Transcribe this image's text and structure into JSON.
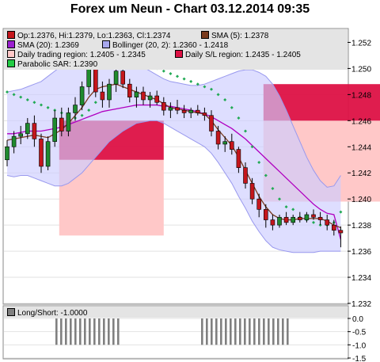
{
  "title": "Forex um Neun - Chart 03.12.2014 09:35",
  "legend": {
    "ohlc": "Op:1.2376, Hi:1.2379, Lo:1.2363, Cl:1.2374",
    "sma5": "SMA (5): 1.2378",
    "sma20": "SMA (20): 1.2369",
    "bollinger": "Bollinger (20, 2): 1.2360 - 1.2418",
    "daily_region": "Daily trading region: 1.2405 - 1.2345",
    "daily_sl": "Daily S/L region: 1.2435 - 1.2405",
    "sar": "Parabolic SAR: 1.2390"
  },
  "sub_legend": "Long/Short: -1.0000",
  "colors": {
    "band_fill": "#ccccff",
    "band_line": "#9999ee",
    "sma5": "#7a3b1e",
    "sma20": "#b000c0",
    "sar": "#22aa55",
    "sl": "#dd1144",
    "region": "#ffc8c8",
    "bull": "#1f8a2e",
    "bear": "#c4161c",
    "wick": "#000000",
    "legend_ohlc": "#c4161c",
    "legend_sma5": "#7a3b1e",
    "legend_sma20": "#9b1fd0",
    "legend_bb": "#a8a8ee",
    "legend_region": "#ffc8c8",
    "legend_sl": "#dd1144",
    "legend_sar": "#22cc44",
    "legend_ls": "#808080"
  },
  "chart_data": [
    {
      "type": "candlestick",
      "ylim": [
        1.232,
        1.253
      ],
      "yticks": [
        "1.232",
        "1.234",
        "1.236",
        "1.238",
        "1.240",
        "1.242",
        "1.244",
        "1.246",
        "1.248",
        "1.250",
        "1.252"
      ],
      "grid": true,
      "candles": [
        [
          1.243,
          1.2445,
          1.2425,
          1.244
        ],
        [
          1.244,
          1.2452,
          1.2435,
          1.2448
        ],
        [
          1.2448,
          1.2456,
          1.2442,
          1.245
        ],
        [
          1.245,
          1.2462,
          1.2446,
          1.2458
        ],
        [
          1.2458,
          1.2464,
          1.244,
          1.2446
        ],
        [
          1.2446,
          1.245,
          1.242,
          1.2425
        ],
        [
          1.2425,
          1.2448,
          1.2422,
          1.2444
        ],
        [
          1.2444,
          1.2468,
          1.244,
          1.2462
        ],
        [
          1.2462,
          1.247,
          1.2448,
          1.2452
        ],
        [
          1.2452,
          1.247,
          1.2448,
          1.2466
        ],
        [
          1.2466,
          1.2478,
          1.246,
          1.2472
        ],
        [
          1.2472,
          1.249,
          1.2468,
          1.2486
        ],
        [
          1.2486,
          1.2505,
          1.248,
          1.2502
        ],
        [
          1.2502,
          1.2506,
          1.2478,
          1.2482
        ],
        [
          1.2482,
          1.249,
          1.247,
          1.2476
        ],
        [
          1.2476,
          1.2492,
          1.247,
          1.2488
        ],
        [
          1.2488,
          1.2502,
          1.2482,
          1.2498
        ],
        [
          1.2498,
          1.2503,
          1.2485,
          1.2488
        ],
        [
          1.2488,
          1.2492,
          1.2474,
          1.2478
        ],
        [
          1.2478,
          1.2486,
          1.247,
          1.2482
        ],
        [
          1.2482,
          1.2486,
          1.2472,
          1.2476
        ],
        [
          1.2476,
          1.2482,
          1.247,
          1.2479
        ],
        [
          1.2479,
          1.2483,
          1.2472,
          1.2474
        ],
        [
          1.2474,
          1.2478,
          1.2464,
          1.2468
        ],
        [
          1.2468,
          1.2474,
          1.2462,
          1.247
        ],
        [
          1.247,
          1.2476,
          1.2465,
          1.2468
        ],
        [
          1.2468,
          1.2472,
          1.2462,
          1.2466
        ],
        [
          1.2466,
          1.247,
          1.2462,
          1.2468
        ],
        [
          1.2468,
          1.2472,
          1.2464,
          1.2466
        ],
        [
          1.2466,
          1.247,
          1.246,
          1.2464
        ],
        [
          1.2464,
          1.2468,
          1.2448,
          1.2452
        ],
        [
          1.2452,
          1.2456,
          1.2438,
          1.2442
        ],
        [
          1.2442,
          1.2448,
          1.2436,
          1.2444
        ],
        [
          1.2444,
          1.245,
          1.2434,
          1.2438
        ],
        [
          1.2438,
          1.244,
          1.242,
          1.2424
        ],
        [
          1.2424,
          1.2428,
          1.2408,
          1.2412
        ],
        [
          1.2412,
          1.2416,
          1.2396,
          1.24
        ],
        [
          1.24,
          1.2404,
          1.2386,
          1.2392
        ],
        [
          1.2392,
          1.2396,
          1.2378,
          1.2384
        ],
        [
          1.2384,
          1.2388,
          1.2376,
          1.238
        ],
        [
          1.238,
          1.2388,
          1.2378,
          1.2386
        ],
        [
          1.2386,
          1.239,
          1.238,
          1.2382
        ],
        [
          1.2382,
          1.2388,
          1.238,
          1.2386
        ],
        [
          1.2386,
          1.239,
          1.2382,
          1.2384
        ],
        [
          1.2384,
          1.239,
          1.2382,
          1.2388
        ],
        [
          1.2388,
          1.2392,
          1.2384,
          1.2386
        ],
        [
          1.2386,
          1.239,
          1.238,
          1.2384
        ],
        [
          1.2384,
          1.2388,
          1.2376,
          1.238
        ],
        [
          1.238,
          1.2384,
          1.2372,
          1.2376
        ],
        [
          1.2376,
          1.2379,
          1.2363,
          1.2374
        ]
      ],
      "sma5": [
        1.2445,
        1.2446,
        1.2447,
        1.2448,
        1.2449,
        1.2448,
        1.2447,
        1.245,
        1.2453,
        1.2458,
        1.2464,
        1.247,
        1.2478,
        1.2484,
        1.2486,
        1.2487,
        1.2488,
        1.2486,
        1.2484,
        1.2482,
        1.248,
        1.2478,
        1.2476,
        1.2473,
        1.247,
        1.2469,
        1.2468,
        1.2467,
        1.2466,
        1.2465,
        1.246,
        1.2453,
        1.2447,
        1.2441,
        1.2432,
        1.2422,
        1.2412,
        1.2402,
        1.2394,
        1.2388,
        1.2385,
        1.2384,
        1.2384,
        1.2385,
        1.2385,
        1.2385,
        1.2385,
        1.2383,
        1.238,
        1.2378
      ],
      "sma20": [
        1.245,
        1.245,
        1.2451,
        1.2452,
        1.2452,
        1.2452,
        1.2453,
        1.2454,
        1.2455,
        1.2457,
        1.2459,
        1.2461,
        1.2463,
        1.2465,
        1.2467,
        1.2468,
        1.2469,
        1.247,
        1.2471,
        1.2472,
        1.2472,
        1.2472,
        1.2472,
        1.2471,
        1.2471,
        1.247,
        1.2469,
        1.2468,
        1.2467,
        1.2465,
        1.2463,
        1.246,
        1.2457,
        1.2454,
        1.245,
        1.2446,
        1.2441,
        1.2436,
        1.2431,
        1.2426,
        1.2421,
        1.2416,
        1.2411,
        1.2406,
        1.2401,
        1.2396,
        1.2392,
        1.2389,
        1.2388,
        1.2369
      ],
      "bb_upper": [
        1.2482,
        1.2483,
        1.2484,
        1.2486,
        1.2488,
        1.249,
        1.2494,
        1.2498,
        1.2502,
        1.2506,
        1.251,
        1.2512,
        1.2514,
        1.2515,
        1.2515,
        1.2514,
        1.2512,
        1.251,
        1.2507,
        1.2504,
        1.2501,
        1.2498,
        1.2495,
        1.2492,
        1.249,
        1.2489,
        1.2488,
        1.2487,
        1.2487,
        1.2488,
        1.249,
        1.2492,
        1.2494,
        1.2496,
        1.2498,
        1.2499,
        1.2499,
        1.2497,
        1.2494,
        1.2488,
        1.2479,
        1.2468,
        1.2456,
        1.2444,
        1.2432,
        1.2422,
        1.2414,
        1.2409,
        1.241,
        1.2418
      ],
      "bb_lower": [
        1.2418,
        1.2417,
        1.2418,
        1.2418,
        1.2416,
        1.2414,
        1.2412,
        1.241,
        1.241,
        1.2412,
        1.2416,
        1.242,
        1.2426,
        1.2432,
        1.2438,
        1.2444,
        1.2448,
        1.2452,
        1.2455,
        1.2458,
        1.2459,
        1.246,
        1.246,
        1.2458,
        1.2455,
        1.2452,
        1.2449,
        1.2446,
        1.2443,
        1.244,
        1.2435,
        1.2428,
        1.242,
        1.2412,
        1.2402,
        1.2393,
        1.2383,
        1.2375,
        1.2368,
        1.2363,
        1.2361,
        1.236,
        1.2359,
        1.2359,
        1.2359,
        1.2359,
        1.236,
        1.236,
        1.236,
        1.236
      ],
      "sar": [
        1.2482,
        1.248,
        1.2478,
        1.2476,
        1.2474,
        1.2472,
        1.247,
        1.2468,
        1.2466,
        1.2464,
        1.2462,
        1.2464,
        1.2468,
        1.2474,
        1.248,
        1.2486,
        1.249,
        1.2494,
        1.2504,
        1.2503,
        1.2502,
        1.2501,
        1.25,
        1.2498,
        1.2496,
        1.2494,
        1.2492,
        1.249,
        1.2488,
        1.2486,
        1.2484,
        1.248,
        1.2476,
        1.247,
        1.2462,
        1.2452,
        1.244,
        1.2428,
        1.2418,
        1.2408,
        1.24,
        1.2394,
        1.2392,
        1.2386,
        1.2384,
        1.2382,
        1.238,
        1.238,
        1.2382,
        1.239
      ],
      "sl_regions": [
        {
          "x_start": 8,
          "x_end": 23,
          "low": 1.243,
          "high": 1.246
        },
        {
          "x_start": 38,
          "x_end": 55,
          "low": 1.246,
          "high": 1.2488
        }
      ],
      "trading_regions": [
        {
          "x_start": 8,
          "x_end": 23,
          "low": 1.2372,
          "high": 1.243
        },
        {
          "x_start": 38,
          "x_end": 55,
          "low": 1.2398,
          "high": 1.246
        }
      ]
    },
    {
      "type": "bar",
      "ylim": [
        -1.5,
        0.0
      ],
      "yticks": [
        "0.0",
        "-0.5",
        "-1.0",
        "-1.5"
      ],
      "short_ranges": [
        [
          9,
          22
        ],
        [
          39,
          57
        ]
      ],
      "value": -1.0
    }
  ]
}
